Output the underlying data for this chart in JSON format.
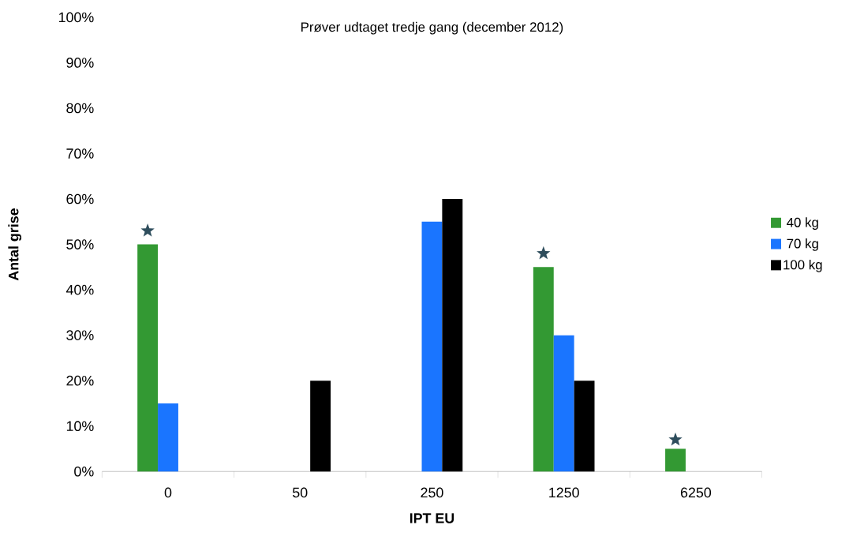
{
  "chart_data": {
    "type": "bar",
    "title": "Prøver udtaget tredje gang (december 2012)",
    "xlabel": "IPT EU",
    "ylabel": "Antal grise",
    "categories": [
      "0",
      "50",
      "250",
      "1250",
      "6250"
    ],
    "series": [
      {
        "name": "40 kg",
        "color": "#339933",
        "values": [
          50,
          0,
          0,
          45,
          5
        ]
      },
      {
        "name": "70 kg",
        "color": "#1a75ff",
        "values": [
          15,
          0,
          55,
          30,
          0
        ]
      },
      {
        "name": "100 kg",
        "color": "#000000",
        "values": [
          0,
          20,
          60,
          20,
          0
        ]
      },
      {
        "type": "scatter",
        "color": "#2e4d5c",
        "marker": "star",
        "values": [
          53,
          null,
          null,
          48,
          7
        ]
      }
    ],
    "ylim": [
      0,
      100
    ],
    "yticks": [
      {
        "value": 0,
        "label": "0%"
      },
      {
        "value": 10,
        "label": "10%"
      },
      {
        "value": 20,
        "label": "20%"
      },
      {
        "value": 30,
        "label": "30%"
      },
      {
        "value": 40,
        "label": "40%"
      },
      {
        "value": 50,
        "label": "50%"
      },
      {
        "value": 60,
        "label": "60%"
      },
      {
        "value": 70,
        "label": "70%"
      },
      {
        "value": 80,
        "label": "80%"
      },
      {
        "value": 90,
        "label": "90%"
      },
      {
        "value": 100,
        "label": "100%"
      }
    ],
    "legend": "right"
  }
}
